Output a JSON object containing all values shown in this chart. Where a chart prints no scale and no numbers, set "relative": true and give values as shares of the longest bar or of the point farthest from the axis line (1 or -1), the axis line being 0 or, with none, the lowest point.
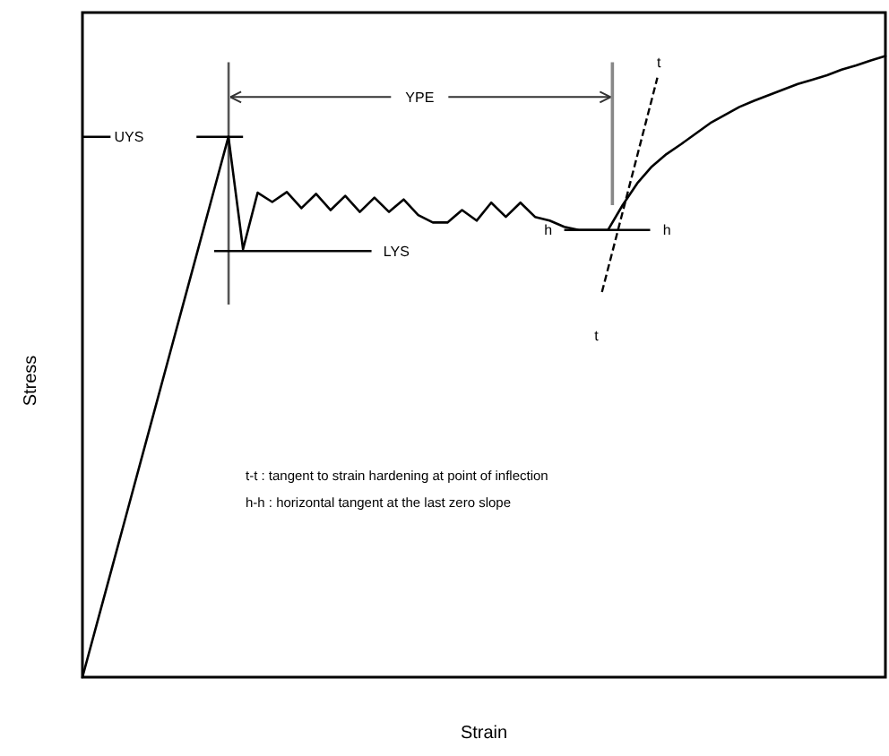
{
  "chart_data": {
    "type": "line",
    "relative": true,
    "xlabel": "Strain",
    "ylabel": "Stress",
    "categories": [
      null,
      null,
      null,
      null,
      null,
      null,
      null,
      null,
      null,
      null,
      null,
      null,
      null,
      null,
      null,
      null,
      null,
      null,
      null,
      null,
      null,
      null,
      null,
      null,
      null,
      null,
      null,
      null,
      null,
      null,
      null,
      null,
      null,
      null,
      null,
      null,
      null,
      null,
      null,
      null,
      null,
      null,
      null,
      null,
      null,
      null,
      null,
      null,
      null,
      null,
      null,
      null,
      null,
      null,
      null,
      null
    ],
    "series": [
      {
        "color": "#000000",
        "values": [
          0,
          0.087,
          0.174,
          0.261,
          0.348,
          0.435,
          0.522,
          0.609,
          0.696,
          0.783,
          0.87,
          0.689,
          0.78,
          0.765,
          0.781,
          0.755,
          0.778,
          0.752,
          0.775,
          0.749,
          0.772,
          0.749,
          0.769,
          0.744,
          0.732,
          0.732,
          0.752,
          0.735,
          0.764,
          0.741,
          0.764,
          0.741,
          0.735,
          0.725,
          0.72,
          0.72,
          0.72,
          0.76,
          0.795,
          0.822,
          0.842,
          0.858,
          0.875,
          0.892,
          0.905,
          0.918,
          0.928,
          0.937,
          0.946,
          0.955,
          0.962,
          0.969,
          0.978,
          0.985,
          0.993,
          1
        ]
      }
    ],
    "annotations": [
      "UYS",
      "LYS",
      "YPE",
      "h",
      "h",
      "t",
      "t",
      "t-t : tangent to strain hardening at point of inflection",
      "h-h : horizontal tangent at the last zero slope"
    ]
  }
}
